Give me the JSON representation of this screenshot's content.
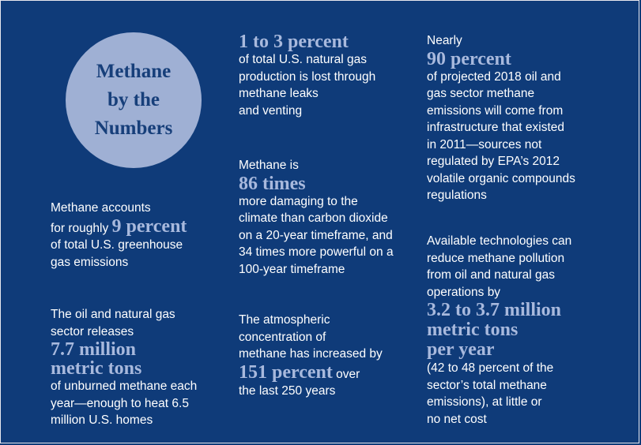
{
  "circle": {
    "line1": "Methane",
    "line2": "by the",
    "line3": "Numbers"
  },
  "stat_greenhouse": {
    "line1": "Methane accounts",
    "pre": "for roughly ",
    "big": "9 percent",
    "line3": "of total U.S. greenhouse",
    "line4": "gas emissions"
  },
  "stat_oilgas_release": {
    "line1": "The oil and natural gas",
    "line2": "sector releases",
    "big1": "7.7 million",
    "big2": "metric tons",
    "line5": "of unburned methane each",
    "line6": "year—enough to heat 6.5",
    "line7": "million U.S. homes"
  },
  "stat_production_lost": {
    "big": "1 to 3 percent",
    "line2": "of total U.S. natural gas",
    "line3": "production is lost through",
    "line4": "methane leaks",
    "line5": "and venting"
  },
  "stat_damaging": {
    "line1": "Methane is",
    "big": "86 times",
    "line3": "more damaging to the",
    "line4": "climate than carbon dioxide",
    "line5": "on a 20-year timeframe, and",
    "line6": "34 times more powerful on a",
    "line7": "100-year timeframe"
  },
  "stat_concentration": {
    "line1": "The atmospheric",
    "line2": "concentration of",
    "line3": "methane has increased by",
    "big": "151 percent",
    "post": " over",
    "line5": "the last 250 years"
  },
  "stat_infrastructure": {
    "line1": "Nearly",
    "big": "90 percent",
    "line3": "of projected 2018 oil and",
    "line4": "gas sector methane",
    "line5": "emissions will come from",
    "line6": "infrastructure that existed",
    "line7": "in 2011—sources not",
    "line8": "regulated by EPA’s 2012",
    "line9": "volatile organic compounds",
    "line10": "regulations"
  },
  "stat_reduce": {
    "line1": "Available technologies can",
    "line2": "reduce methane pollution",
    "line3": "from oil and natural gas",
    "line4": "operations by",
    "big1": "3.2 to 3.7 million",
    "big2": "metric tons",
    "big3": "per year",
    "line8": "(42 to 48 percent of the",
    "line9": "sector’s total methane",
    "line10": "emissions), at little or",
    "line11": "no net cost"
  },
  "colors": {
    "background": "#0f3b79",
    "circle": "#9fb0d4",
    "highlight": "#a8b9dd",
    "circle_text": "#173f7a"
  }
}
